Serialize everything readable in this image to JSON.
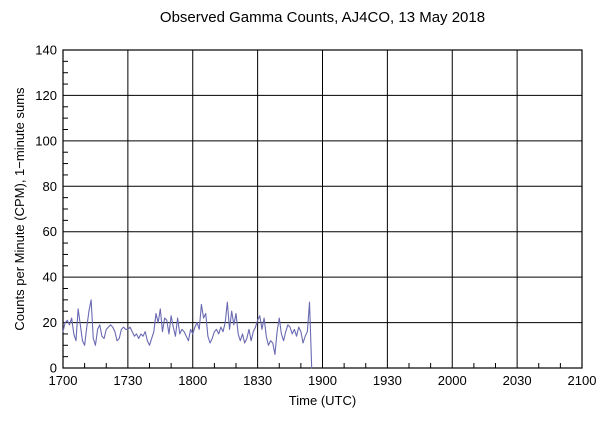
{
  "chart_data": {
    "type": "line",
    "title": "Observed Gamma Counts, AJ4CO, 13 May 2018",
    "xlabel": "Time (UTC)",
    "ylabel": "Counts per Minute (CPM), 1−minute sums",
    "legend": "none",
    "grid": true,
    "colors": {
      "line": "#6a6ab3",
      "grid": "#000000",
      "axis": "#000000",
      "text": "#000000",
      "background": "#ffffff"
    },
    "x_axis": {
      "label": "Time (UTC)",
      "unit_minutes_from": "1700",
      "range_minutes": [
        0,
        240
      ],
      "major_tick_interval_minutes": 30,
      "minor_tick_interval_minutes": 10,
      "tick_labels": [
        "1700",
        "1730",
        "1800",
        "1830",
        "1900",
        "1930",
        "2000",
        "2030",
        "2100"
      ]
    },
    "y_axis": {
      "label": "Counts per Minute (CPM), 1−minute sums",
      "range": [
        0,
        140
      ],
      "major_tick_interval": 20,
      "minor_tick_interval": 5,
      "tick_labels": [
        "0",
        "20",
        "40",
        "60",
        "80",
        "100",
        "120",
        "140"
      ]
    },
    "series": [
      {
        "name": "gamma-counts-1min-sums",
        "start_time_utc": "1700",
        "end_time_utc": "1855",
        "step_minutes": 1,
        "values": [
          16,
          20,
          21,
          19,
          22,
          15,
          12,
          26,
          19,
          12,
          10,
          18,
          25,
          30,
          13,
          10,
          17,
          19,
          14,
          13,
          17,
          18,
          19,
          18,
          16,
          12,
          13,
          17,
          18,
          17,
          17,
          18,
          16,
          14,
          15,
          13,
          15,
          14,
          16,
          12,
          10,
          13,
          16,
          24,
          20,
          26,
          16,
          22,
          21,
          15,
          23,
          18,
          14,
          22,
          15,
          17,
          16,
          14,
          12,
          17,
          15,
          18,
          20,
          17,
          28,
          22,
          24,
          14,
          11,
          13,
          16,
          17,
          15,
          18,
          16,
          20,
          29,
          17,
          25,
          19,
          24,
          15,
          12,
          15,
          11,
          13,
          17,
          12,
          16,
          18,
          21,
          23,
          17,
          22,
          14,
          10,
          12,
          11,
          6,
          16,
          22,
          15,
          12,
          16,
          19,
          18,
          15,
          17,
          14,
          18,
          16,
          11,
          14,
          16,
          29,
          0
        ]
      }
    ]
  }
}
